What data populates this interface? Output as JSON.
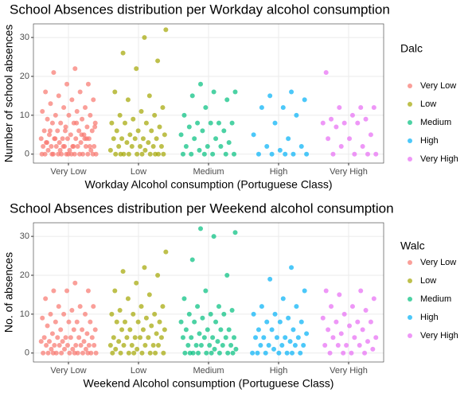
{
  "chart_data": [
    {
      "type": "scatter",
      "title": "School Absences distribution per Workday alcohol consumption",
      "x_label": "Workday Alcohol consumption (Portuguese Class)",
      "y_label": "Number of school absences",
      "legend_title": "Dalc",
      "categories": [
        "Very Low",
        "Low",
        "Medium",
        "High",
        "Very High"
      ],
      "ylim": [
        -2.3,
        33.5
      ],
      "yticks": [
        0,
        10,
        20,
        30
      ],
      "grid": true,
      "series": [
        {
          "name": "Very Low",
          "color": "#F8766D",
          "values": [
            22,
            21,
            18,
            18,
            16,
            16,
            15,
            14,
            14,
            13,
            12,
            12,
            11,
            11,
            10,
            10,
            10,
            9,
            9,
            8,
            8,
            8,
            8,
            7,
            7,
            6,
            6,
            6,
            6,
            5,
            5,
            5,
            4,
            4,
            4,
            4,
            4,
            4,
            3,
            3,
            3,
            2,
            2,
            2,
            2,
            2,
            2,
            2,
            2,
            1,
            1,
            1,
            0,
            0,
            0,
            0,
            0,
            0,
            0,
            0,
            0,
            0,
            0,
            0,
            6,
            4,
            2,
            0,
            8,
            4,
            2,
            0,
            3,
            5,
            1,
            7,
            2,
            0,
            4,
            6
          ]
        },
        {
          "name": "Low",
          "color": "#A3A500",
          "values": [
            32,
            30,
            26,
            24,
            22,
            16,
            15,
            14,
            12,
            11,
            10,
            10,
            9,
            8,
            8,
            8,
            7,
            6,
            6,
            6,
            5,
            5,
            4,
            4,
            4,
            4,
            4,
            3,
            3,
            2,
            2,
            2,
            2,
            2,
            1,
            1,
            0,
            0,
            0,
            0,
            0,
            0,
            0,
            0,
            0,
            0
          ]
        },
        {
          "name": "Medium",
          "color": "#00BF7D",
          "values": [
            18,
            16,
            16,
            15,
            14,
            12,
            10,
            8,
            8,
            8,
            8,
            7,
            6,
            6,
            5,
            4,
            4,
            3,
            2,
            2,
            2,
            1,
            0,
            0,
            0,
            0,
            0,
            0
          ]
        },
        {
          "name": "High",
          "color": "#00B0F6",
          "values": [
            16,
            15,
            14,
            12,
            12,
            10,
            8,
            5,
            4,
            2,
            2,
            1,
            0,
            0,
            0,
            0,
            0
          ]
        },
        {
          "name": "Very High",
          "color": "#E76BF3",
          "values": [
            21,
            12,
            12,
            12,
            10,
            9,
            9,
            8,
            8,
            8,
            7,
            5,
            4,
            4,
            2,
            2,
            0,
            0,
            0,
            0
          ]
        }
      ]
    },
    {
      "type": "scatter",
      "title": "School Absences distribution per Weekend alcohol consumption",
      "x_label": "Weekend Alcohol consumption (Portuguese Class)",
      "y_label": "No. of absences",
      "legend_title": "Walc",
      "categories": [
        "Very Low",
        "Low",
        "Medium",
        "High",
        "Very High"
      ],
      "ylim": [
        -2.3,
        33.5
      ],
      "yticks": [
        0,
        10,
        20,
        30
      ],
      "grid": true,
      "series": [
        {
          "name": "Very Low",
          "color": "#F8766D",
          "values": [
            18,
            16,
            16,
            16,
            14,
            12,
            12,
            12,
            11,
            10,
            10,
            10,
            9,
            8,
            8,
            8,
            8,
            7,
            6,
            6,
            6,
            6,
            5,
            5,
            4,
            4,
            4,
            4,
            4,
            4,
            3,
            3,
            3,
            3,
            2,
            2,
            2,
            2,
            2,
            2,
            2,
            2,
            1,
            1,
            1,
            1,
            0,
            0,
            0,
            0,
            0,
            0,
            0,
            0,
            0,
            0,
            0,
            0
          ]
        },
        {
          "name": "Low",
          "color": "#A3A500",
          "values": [
            26,
            22,
            21,
            20,
            18,
            16,
            15,
            14,
            12,
            12,
            11,
            10,
            10,
            10,
            9,
            8,
            8,
            8,
            8,
            7,
            6,
            6,
            6,
            6,
            5,
            4,
            4,
            4,
            4,
            4,
            4,
            3,
            2,
            2,
            2,
            2,
            2,
            2,
            1,
            1,
            0,
            0,
            0,
            0,
            0,
            0,
            0,
            0
          ]
        },
        {
          "name": "Medium",
          "color": "#00BF7D",
          "values": [
            32,
            31,
            30,
            24,
            20,
            16,
            14,
            12,
            12,
            11,
            10,
            10,
            10,
            9,
            8,
            8,
            8,
            6,
            6,
            6,
            6,
            5,
            4,
            4,
            4,
            4,
            4,
            4,
            3,
            2,
            2,
            2,
            2,
            2,
            2,
            1,
            1,
            0,
            0,
            0,
            0,
            0,
            0,
            0,
            0,
            0
          ]
        },
        {
          "name": "High",
          "color": "#00B0F6",
          "values": [
            22,
            19,
            16,
            14,
            12,
            12,
            10,
            10,
            9,
            8,
            8,
            8,
            6,
            6,
            6,
            5,
            4,
            4,
            4,
            4,
            4,
            3,
            2,
            2,
            2,
            2,
            2,
            1,
            0,
            0,
            0,
            0,
            0,
            0,
            0
          ]
        },
        {
          "name": "Very High",
          "color": "#E76BF3",
          "values": [
            16,
            16,
            15,
            14,
            12,
            12,
            11,
            10,
            9,
            8,
            8,
            8,
            7,
            6,
            6,
            5,
            4,
            4,
            4,
            3,
            2,
            2,
            2,
            2,
            1,
            0,
            0,
            0,
            0
          ]
        }
      ]
    }
  ]
}
